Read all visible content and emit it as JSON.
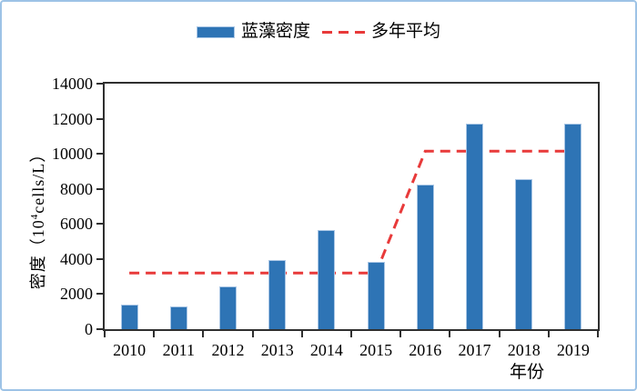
{
  "legend": {
    "bar_label": "蓝藻密度",
    "line_label": "多年平均"
  },
  "axes": {
    "y_title_prefix": "密度（10",
    "y_title_sup": "4",
    "y_title_suffix": "cells/L）",
    "x_title": "年份"
  },
  "chart_data": {
    "type": "bar",
    "title": "",
    "xlabel": "年份",
    "ylabel": "密度（10⁴cells/L）",
    "categories": [
      "2010",
      "2011",
      "2012",
      "2013",
      "2014",
      "2015",
      "2016",
      "2017",
      "2018",
      "2019"
    ],
    "series": [
      {
        "name": "蓝藻密度",
        "type": "bar",
        "values": [
          1400,
          1300,
          2450,
          3950,
          5650,
          3850,
          8250,
          11700,
          8550,
          11700
        ]
      },
      {
        "name": "多年平均",
        "type": "line",
        "style": "dashed",
        "values": [
          3200,
          3200,
          3200,
          3200,
          3200,
          3200,
          10150,
          10150,
          10150,
          10150
        ]
      }
    ],
    "ylim": [
      0,
      14000
    ],
    "yticks": [
      0,
      2000,
      4000,
      6000,
      8000,
      10000,
      12000,
      14000
    ],
    "grid": false,
    "legend_position": "top"
  },
  "colors": {
    "bar_fill": "#2e74b5",
    "bar_border": "#a9c6e5",
    "line_red": "#e83a3a",
    "axis": "#2f2f2f",
    "outer_border": "#9dc3e6",
    "text": "#000000"
  }
}
